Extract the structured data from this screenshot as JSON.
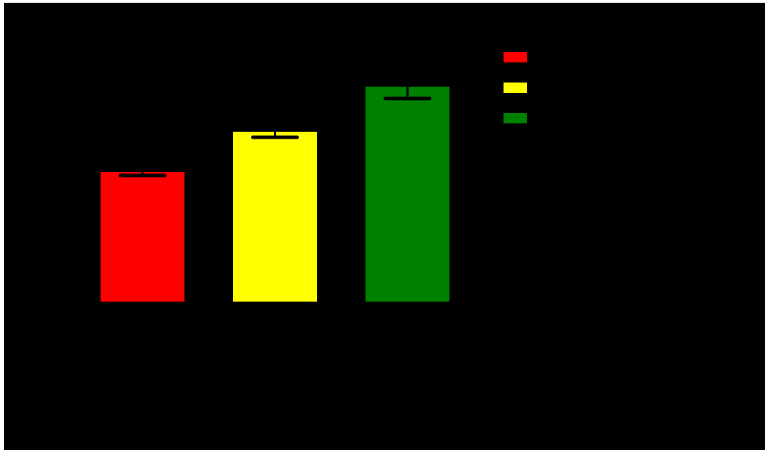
{
  "chart_data": {
    "type": "bar",
    "title": "",
    "xlabel": "",
    "ylabel": "",
    "background": "#000000",
    "legend_position": "top-right",
    "categories": [
      "",
      "",
      ""
    ],
    "values": [
      187,
      245,
      310
    ],
    "errors": [
      5,
      8,
      17
    ],
    "colors": [
      "#ff0000",
      "#ffff00",
      "#008000"
    ],
    "error_bar_color": "#000000",
    "legend": [
      {
        "label": "",
        "color": "#ff0000"
      },
      {
        "label": "",
        "color": "#ffff00"
      },
      {
        "label": "",
        "color": "#008000"
      }
    ],
    "ylim": [
      0,
      430
    ],
    "grid": false
  }
}
